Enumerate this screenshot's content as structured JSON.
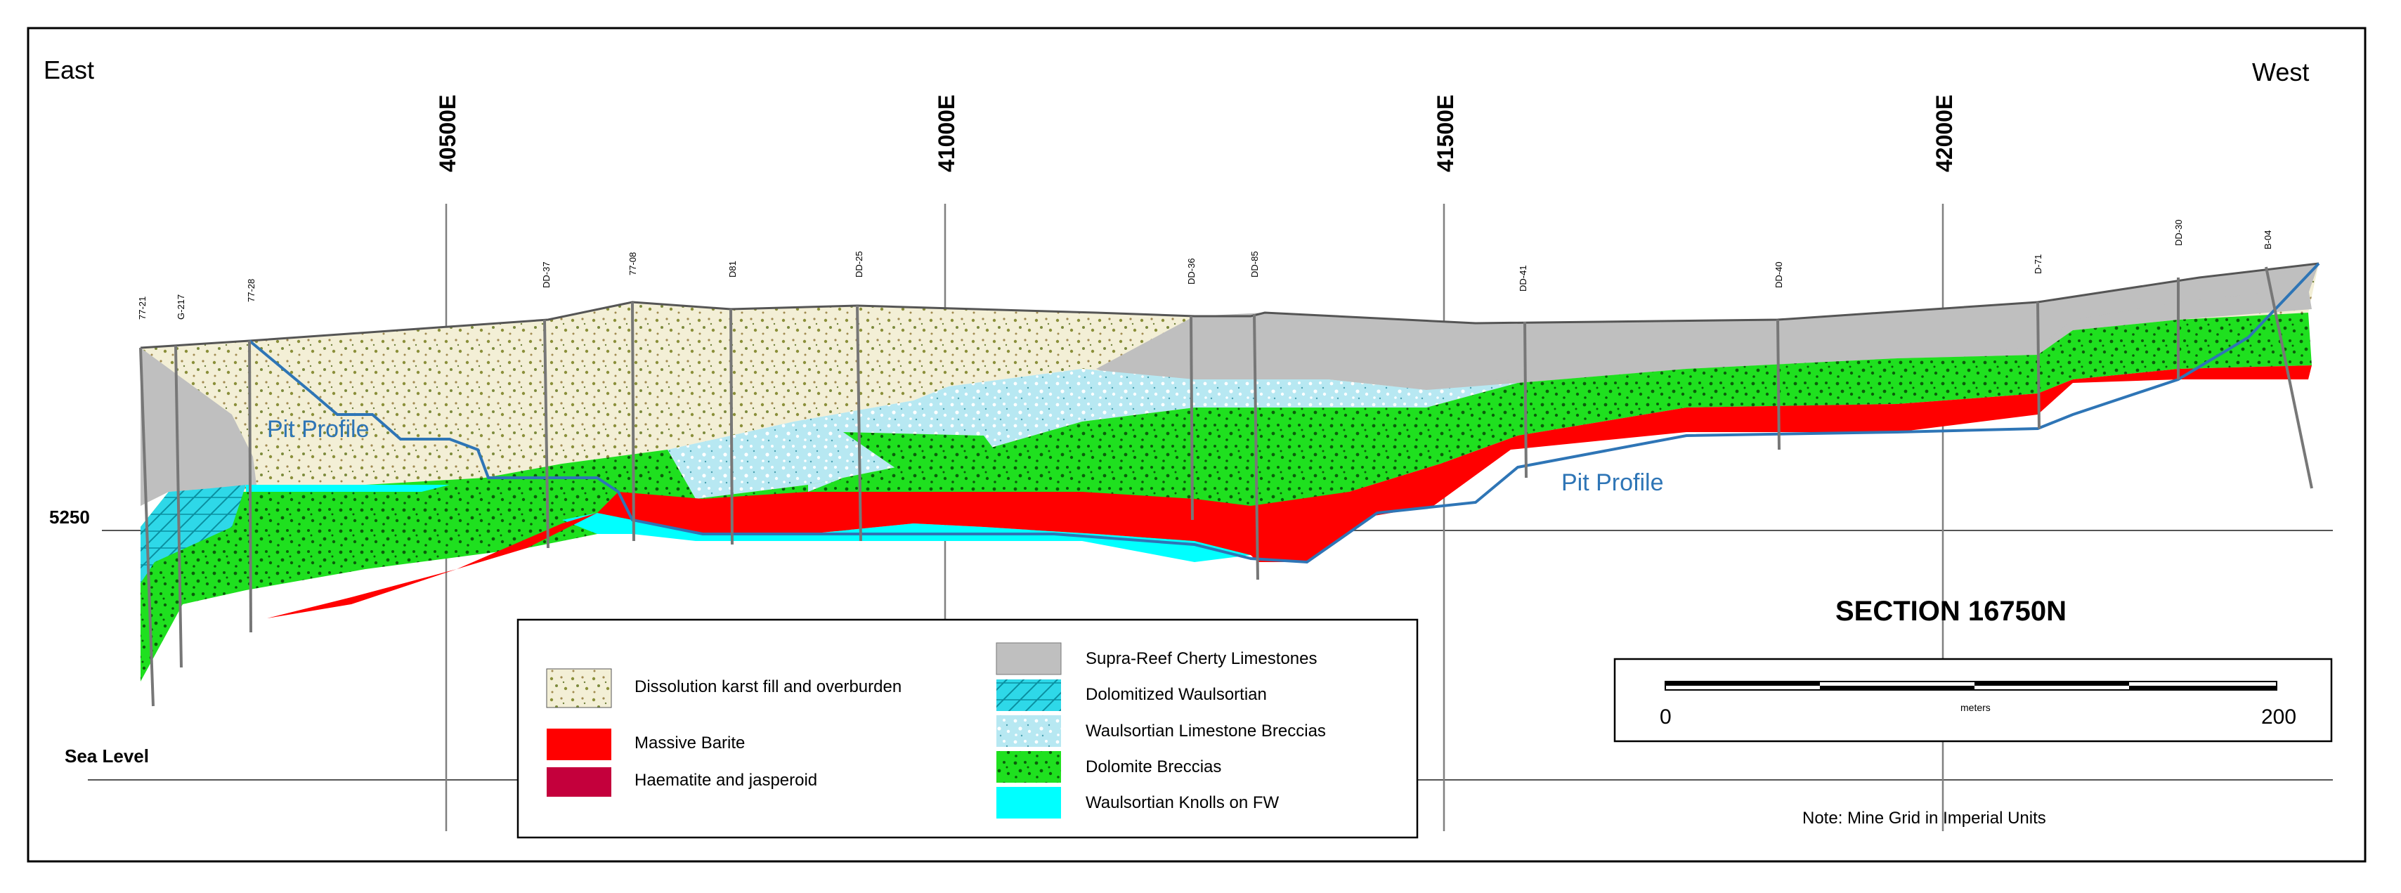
{
  "orientation": {
    "left": "East",
    "right": "West"
  },
  "grid_lines": [
    "40500E",
    "41000E",
    "41500E",
    "42000E"
  ],
  "elevation_labels": {
    "upper": "5250",
    "lower": "Sea Level"
  },
  "drillholes": [
    "77-21",
    "G-217",
    "77-28",
    "DD-37",
    "77-08",
    "D81",
    "DD-25",
    "DD-36",
    "DD-85",
    "DD-41",
    "DD-40",
    "D-71",
    "DD-30",
    "B-04"
  ],
  "pit_profile_label": "Pit Profile",
  "section_title": "SECTION 16750N",
  "scale_bar": {
    "start": "0",
    "end": "200",
    "unit": "meters"
  },
  "note": "Note:  Mine Grid in Imperial Units",
  "legend": [
    {
      "label": "Dissolution karst fill and overburden",
      "pattern": "karst",
      "color": "#f3efd6"
    },
    {
      "label": "Massive Barite",
      "pattern": "solid",
      "color": "#ff0000"
    },
    {
      "label": "Haematite and jasperoid",
      "pattern": "solid",
      "color": "#c4003c"
    },
    {
      "label": "Supra-Reef Cherty Limestones",
      "pattern": "solid",
      "color": "#bfbfbf"
    },
    {
      "label": "Dolomitized Waulsortian",
      "pattern": "hatch",
      "color": "#2ed8e8"
    },
    {
      "label": "Waulsortian Limestone Breccias",
      "pattern": "breccia",
      "color": "#b7e8f2"
    },
    {
      "label": "Dolomite Breccias",
      "pattern": "dolomite",
      "color": "#1fe01f"
    },
    {
      "label": "Waulsortian Knolls on FW",
      "pattern": "solid",
      "color": "#00ffff"
    }
  ],
  "colors": {
    "pit_profile": "#2e75b6",
    "frame": "#000000",
    "grid_line": "#808080"
  }
}
